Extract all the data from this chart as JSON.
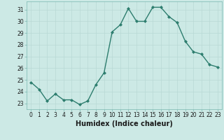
{
  "x": [
    0,
    1,
    2,
    3,
    4,
    5,
    6,
    7,
    8,
    9,
    10,
    11,
    12,
    13,
    14,
    15,
    16,
    17,
    18,
    19,
    20,
    21,
    22,
    23
  ],
  "y": [
    24.8,
    24.2,
    23.2,
    23.8,
    23.3,
    23.3,
    22.9,
    23.2,
    24.6,
    25.6,
    29.1,
    29.7,
    31.1,
    30.0,
    30.0,
    31.2,
    31.2,
    30.4,
    29.9,
    28.3,
    27.4,
    27.2,
    26.3,
    26.1
  ],
  "line_color": "#2d7d6e",
  "marker": "D",
  "marker_size": 2.0,
  "bg_color": "#cce9e5",
  "grid_color": "#b8d8d4",
  "xlabel": "Humidex (Indice chaleur)",
  "ylim": [
    22.5,
    31.7
  ],
  "xlim": [
    -0.5,
    23.5
  ],
  "yticks": [
    23,
    24,
    25,
    26,
    27,
    28,
    29,
    30,
    31
  ],
  "xticks": [
    0,
    1,
    2,
    3,
    4,
    5,
    6,
    7,
    8,
    9,
    10,
    11,
    12,
    13,
    14,
    15,
    16,
    17,
    18,
    19,
    20,
    21,
    22,
    23
  ],
  "tick_fontsize": 5.5,
  "xlabel_fontsize": 7.0,
  "line_width": 1.0
}
